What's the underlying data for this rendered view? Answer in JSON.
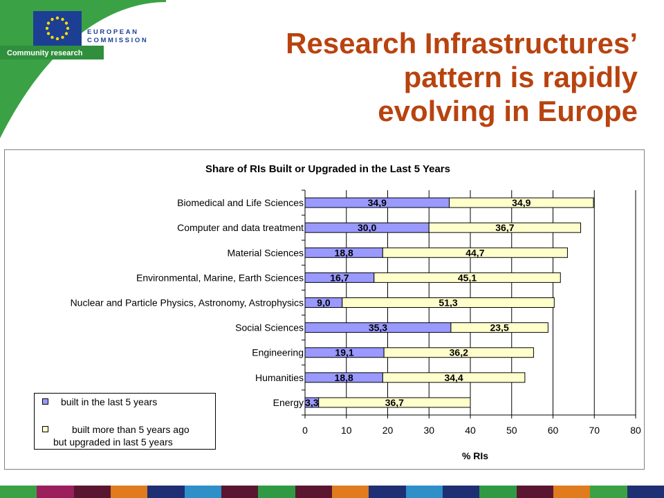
{
  "header": {
    "org_line1": "EUROPEAN",
    "org_line2": "COMMISSION",
    "tagline": "Community research",
    "title_line1": "Research Infrastructures’",
    "title_line2": "pattern is rapidly",
    "title_line3": "evolving in Europe"
  },
  "colors": {
    "title": "#b8430f",
    "brand_blue": "#1c3f94",
    "series_built": "#9999ff",
    "series_upgraded": "#ffffcc",
    "corner_green": "#3aa245",
    "strip": [
      "#3aa245",
      "#9b1f5d",
      "#5a1630",
      "#e07b1e",
      "#1e2f73",
      "#2e8fc9",
      "#5a1630",
      "#2f9a43",
      "#5a1630",
      "#e07b1e",
      "#1e2f73",
      "#2e8fc9",
      "#1e2f73",
      "#2f9a43",
      "#5a1630",
      "#e07b1e",
      "#3aa245",
      "#1e2f73"
    ]
  },
  "chart_data": {
    "type": "bar",
    "orientation": "horizontal",
    "stacked": true,
    "title": "Share of RIs Built or Upgraded in the Last 5 Years",
    "xlabel": "% RIs",
    "ylabel": "",
    "xlim": [
      0,
      80
    ],
    "xticks": [
      0,
      10,
      20,
      30,
      40,
      50,
      60,
      70,
      80
    ],
    "grid": true,
    "legend_position": "bottom-left",
    "categories": [
      "Biomedical and Life Sciences",
      "Computer and data treatment",
      "Material Sciences",
      "Environmental, Marine, Earth Sciences",
      "Nuclear and Particle Physics, Astronomy, Astrophysics",
      "Social Sciences",
      "Engineering",
      "Humanities",
      "Energy"
    ],
    "series": [
      {
        "name": "built in the last 5 years",
        "values": [
          34.9,
          30.0,
          18.8,
          16.7,
          9.0,
          35.3,
          19.1,
          18.8,
          3.3
        ]
      },
      {
        "name": "built more than 5 years ago but upgraded in last 5 years",
        "values": [
          34.9,
          36.7,
          44.7,
          45.1,
          51.3,
          23.5,
          36.2,
          34.4,
          36.7
        ]
      }
    ],
    "data_labels": [
      [
        "34,9",
        "34,9"
      ],
      [
        "30,0",
        "36,7"
      ],
      [
        "18,8",
        "44,7"
      ],
      [
        "16,7",
        "45,1"
      ],
      [
        "9,0",
        "51,3"
      ],
      [
        "35,3",
        "23,5"
      ],
      [
        "19,1",
        "36,2"
      ],
      [
        "18,8",
        "34,4"
      ],
      [
        "3,3",
        "36,7"
      ]
    ]
  },
  "legend": {
    "item1": "built in the last 5 years",
    "item2_line1": "built more than 5 years ago",
    "item2_line2": "but upgraded in last 5 years"
  }
}
